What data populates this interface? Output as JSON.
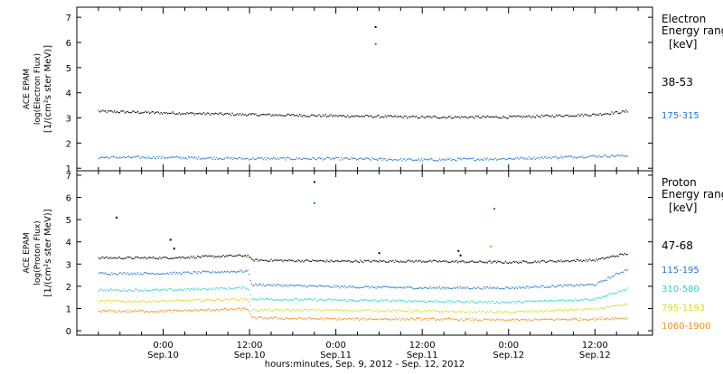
{
  "chart_data": [
    {
      "type": "scatter",
      "panel": "electron",
      "ylabel_lines": [
        "ACE EPAM",
        "log(Electron Flux)",
        "[1/(cm²s ster MeV)]"
      ],
      "ylim": [
        0.9,
        7.4
      ],
      "yticks": [
        1,
        2,
        3,
        4,
        5,
        6,
        7
      ],
      "legend_title": [
        "Electron",
        "Energy range"
      ],
      "legend_unit": "[keV]",
      "series": [
        {
          "name": "38-53",
          "color": "#000000",
          "x": [
            -9,
            0,
            12,
            24,
            36,
            48,
            60,
            64.5
          ],
          "y": [
            3.28,
            3.22,
            3.15,
            3.1,
            3.05,
            3.05,
            3.15,
            3.28
          ],
          "spikes": [
            [
              29.5,
              6.62
            ]
          ]
        },
        {
          "name": "175-315",
          "color": "#1f77d4",
          "x": [
            -9,
            0,
            12,
            24,
            36,
            48,
            60,
            64.5
          ],
          "y": [
            1.45,
            1.45,
            1.4,
            1.4,
            1.35,
            1.4,
            1.5,
            1.52
          ],
          "spikes": [
            [
              29.5,
              5.95
            ]
          ]
        }
      ]
    },
    {
      "type": "scatter",
      "panel": "proton",
      "ylabel_lines": [
        "ACE EPAM",
        "log(Proton Flux)",
        "[1/(cm²s ster MeV)]"
      ],
      "ylim": [
        -0.2,
        7.2
      ],
      "yticks": [
        0,
        1,
        2,
        3,
        4,
        5,
        6,
        7
      ],
      "legend_title": [
        "Proton",
        "Energy range"
      ],
      "legend_unit": "[keV]",
      "xtick_labels": [
        {
          "time": "0:00",
          "date": "Sep.10"
        },
        {
          "time": "12:00",
          "date": "Sep.10"
        },
        {
          "time": "0:00",
          "date": "Sep.11"
        },
        {
          "time": "12:00",
          "date": "Sep.11"
        },
        {
          "time": "0:00",
          "date": "Sep.12"
        },
        {
          "time": "12:00",
          "date": "Sep.12"
        }
      ],
      "xlabel": "hours:minutes, Sep.  9, 2012 - Sep. 12, 2012",
      "xlim_hours": [
        -12,
        68
      ],
      "series": [
        {
          "name": "47-68",
          "color": "#000000",
          "x": [
            -9,
            0,
            11,
            11.8,
            12.2,
            24,
            36,
            48,
            60,
            64.5
          ],
          "y": [
            3.3,
            3.3,
            3.4,
            3.4,
            3.2,
            3.15,
            3.15,
            3.1,
            3.2,
            3.5
          ],
          "spikes": [
            [
              -6.5,
              5.1
            ],
            [
              1,
              4.1
            ],
            [
              1.5,
              3.7
            ],
            [
              21,
              6.7
            ],
            [
              30,
              3.5
            ],
            [
              41,
              3.6
            ],
            [
              41.3,
              3.4
            ]
          ]
        },
        {
          "name": "115-195",
          "color": "#1f77d4",
          "x": [
            -9,
            0,
            11,
            11.8,
            12.2,
            24,
            36,
            48,
            60,
            64.5
          ],
          "y": [
            2.6,
            2.6,
            2.7,
            2.7,
            2.1,
            2.0,
            1.95,
            1.95,
            2.1,
            2.8
          ],
          "spikes": [
            [
              21,
              5.75
            ],
            [
              46,
              5.5
            ]
          ]
        },
        {
          "name": "310-580",
          "color": "#27d3d3",
          "x": [
            -9,
            0,
            11,
            11.8,
            12.2,
            24,
            36,
            48,
            60,
            64.5
          ],
          "y": [
            1.85,
            1.85,
            1.95,
            1.95,
            1.45,
            1.4,
            1.35,
            1.3,
            1.45,
            1.9
          ],
          "spikes": []
        },
        {
          "name": "795-1193",
          "color": "#d7dc18",
          "x": [
            -9,
            0,
            11,
            11.8,
            12.2,
            24,
            36,
            48,
            60,
            64.5
          ],
          "y": [
            1.35,
            1.35,
            1.45,
            1.45,
            0.95,
            0.95,
            0.9,
            0.85,
            1.0,
            1.2
          ],
          "spikes": []
        },
        {
          "name": "1060-1900",
          "color": "#f08c14",
          "x": [
            -9,
            0,
            11,
            11.8,
            12.2,
            24,
            36,
            48,
            60,
            64.5
          ],
          "y": [
            0.9,
            0.9,
            1.0,
            1.0,
            0.6,
            0.55,
            0.55,
            0.5,
            0.55,
            0.6
          ],
          "spikes": [
            [
              45.5,
              3.8
            ]
          ]
        }
      ]
    }
  ]
}
